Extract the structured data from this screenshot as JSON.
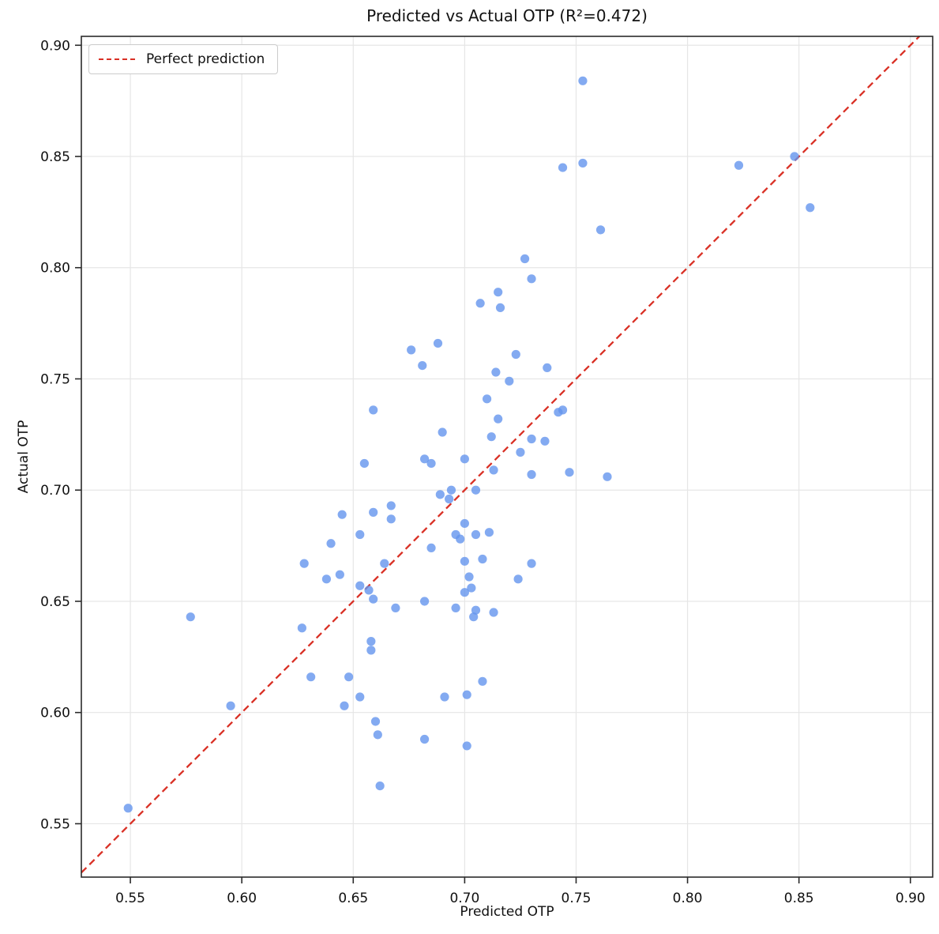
{
  "figure": {
    "title": "Predicted vs Actual OTP (R²=0.472)"
  },
  "chart_data": {
    "type": "scatter",
    "title": "Predicted vs Actual OTP (R²=0.472)",
    "xlabel": "Predicted OTP",
    "ylabel": "Actual OTP",
    "r_squared": 0.472,
    "grid": true,
    "legend_position": "upper left",
    "legend": [
      {
        "label": "Perfect prediction",
        "style": "dashed",
        "color": "#d93025"
      }
    ],
    "xlim": [
      0.528,
      0.91
    ],
    "ylim": [
      0.526,
      0.904
    ],
    "x_ticks": [
      0.55,
      0.6,
      0.65,
      0.7,
      0.75,
      0.8,
      0.85,
      0.9
    ],
    "y_ticks": [
      0.55,
      0.6,
      0.65,
      0.7,
      0.75,
      0.8,
      0.85,
      0.9
    ],
    "point_color": "#6495ED",
    "point_opacity": 0.8,
    "point_radius_px": 5.6,
    "line_color": "#d93025",
    "grid_color": "#e6e6e6",
    "spine_color": "#2b2b2b",
    "perfect_prediction_line": {
      "equation": "y = x"
    },
    "points": [
      [
        0.549,
        0.557
      ],
      [
        0.577,
        0.643
      ],
      [
        0.595,
        0.603
      ],
      [
        0.627,
        0.638
      ],
      [
        0.628,
        0.667
      ],
      [
        0.631,
        0.616
      ],
      [
        0.638,
        0.66
      ],
      [
        0.64,
        0.676
      ],
      [
        0.644,
        0.662
      ],
      [
        0.645,
        0.689
      ],
      [
        0.646,
        0.603
      ],
      [
        0.648,
        0.616
      ],
      [
        0.653,
        0.68
      ],
      [
        0.653,
        0.657
      ],
      [
        0.653,
        0.607
      ],
      [
        0.655,
        0.712
      ],
      [
        0.657,
        0.655
      ],
      [
        0.658,
        0.632
      ],
      [
        0.658,
        0.628
      ],
      [
        0.659,
        0.736
      ],
      [
        0.659,
        0.69
      ],
      [
        0.659,
        0.651
      ],
      [
        0.66,
        0.596
      ],
      [
        0.661,
        0.59
      ],
      [
        0.662,
        0.567
      ],
      [
        0.664,
        0.667
      ],
      [
        0.667,
        0.693
      ],
      [
        0.667,
        0.687
      ],
      [
        0.669,
        0.647
      ],
      [
        0.676,
        0.763
      ],
      [
        0.681,
        0.756
      ],
      [
        0.682,
        0.714
      ],
      [
        0.682,
        0.65
      ],
      [
        0.682,
        0.588
      ],
      [
        0.685,
        0.674
      ],
      [
        0.685,
        0.712
      ],
      [
        0.688,
        0.766
      ],
      [
        0.689,
        0.698
      ],
      [
        0.69,
        0.726
      ],
      [
        0.691,
        0.607
      ],
      [
        0.693,
        0.696
      ],
      [
        0.694,
        0.7
      ],
      [
        0.696,
        0.68
      ],
      [
        0.696,
        0.647
      ],
      [
        0.698,
        0.678
      ],
      [
        0.7,
        0.714
      ],
      [
        0.7,
        0.685
      ],
      [
        0.7,
        0.668
      ],
      [
        0.7,
        0.654
      ],
      [
        0.701,
        0.608
      ],
      [
        0.701,
        0.585
      ],
      [
        0.702,
        0.661
      ],
      [
        0.703,
        0.656
      ],
      [
        0.704,
        0.643
      ],
      [
        0.705,
        0.7
      ],
      [
        0.705,
        0.68
      ],
      [
        0.705,
        0.646
      ],
      [
        0.707,
        0.784
      ],
      [
        0.708,
        0.669
      ],
      [
        0.708,
        0.614
      ],
      [
        0.71,
        0.741
      ],
      [
        0.711,
        0.681
      ],
      [
        0.712,
        0.724
      ],
      [
        0.713,
        0.709
      ],
      [
        0.713,
        0.645
      ],
      [
        0.714,
        0.753
      ],
      [
        0.715,
        0.789
      ],
      [
        0.715,
        0.732
      ],
      [
        0.716,
        0.782
      ],
      [
        0.72,
        0.749
      ],
      [
        0.723,
        0.761
      ],
      [
        0.724,
        0.66
      ],
      [
        0.725,
        0.717
      ],
      [
        0.727,
        0.804
      ],
      [
        0.73,
        0.795
      ],
      [
        0.73,
        0.723
      ],
      [
        0.73,
        0.707
      ],
      [
        0.73,
        0.667
      ],
      [
        0.736,
        0.722
      ],
      [
        0.737,
        0.755
      ],
      [
        0.742,
        0.735
      ],
      [
        0.744,
        0.845
      ],
      [
        0.744,
        0.736
      ],
      [
        0.747,
        0.708
      ],
      [
        0.753,
        0.884
      ],
      [
        0.753,
        0.847
      ],
      [
        0.761,
        0.817
      ],
      [
        0.764,
        0.706
      ],
      [
        0.823,
        0.846
      ],
      [
        0.848,
        0.85
      ],
      [
        0.855,
        0.827
      ]
    ]
  }
}
